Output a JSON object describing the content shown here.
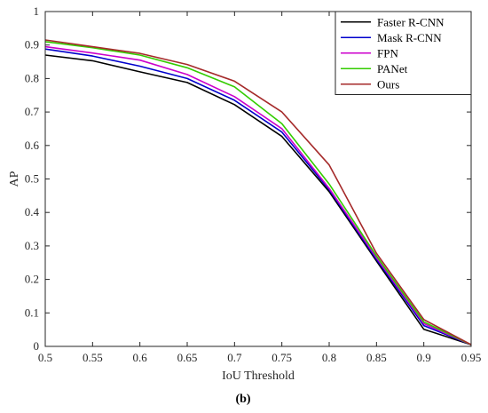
{
  "caption": "(b)",
  "chart_data": {
    "type": "line",
    "title": "",
    "xlabel": "IoU Threshold",
    "ylabel": "AP",
    "xlim": [
      0.5,
      0.95
    ],
    "ylim": [
      0,
      1
    ],
    "grid": false,
    "legend_position": "top-right",
    "x": [
      0.5,
      0.55,
      0.6,
      0.65,
      0.7,
      0.75,
      0.8,
      0.85,
      0.9,
      0.95
    ],
    "x_tick_labels": [
      "0.5",
      "0.55",
      "0.6",
      "0.65",
      "0.7",
      "0.75",
      "0.8",
      "0.85",
      "0.9",
      "0.95"
    ],
    "y_ticks": [
      0,
      0.1,
      0.2,
      0.3,
      0.4,
      0.5,
      0.6,
      0.7,
      0.8,
      0.9,
      1
    ],
    "y_tick_labels": [
      "0",
      "0.1",
      "0.2",
      "0.3",
      "0.4",
      "0.5",
      "0.6",
      "0.7",
      "0.8",
      "0.9",
      "1"
    ],
    "series": [
      {
        "name": "Faster R-CNN",
        "color": "#000000",
        "values": [
          0.87,
          0.853,
          0.82,
          0.788,
          0.722,
          0.627,
          0.462,
          0.255,
          0.051,
          0.005
        ]
      },
      {
        "name": "Mask R-CNN",
        "color": "#0000cc",
        "values": [
          0.888,
          0.867,
          0.837,
          0.8,
          0.735,
          0.64,
          0.468,
          0.26,
          0.062,
          0.005
        ]
      },
      {
        "name": "FPN",
        "color": "#cc00cc",
        "values": [
          0.895,
          0.876,
          0.855,
          0.812,
          0.746,
          0.65,
          0.472,
          0.265,
          0.068,
          0.005
        ]
      },
      {
        "name": "PANet",
        "color": "#33cc00",
        "values": [
          0.91,
          0.892,
          0.87,
          0.832,
          0.775,
          0.665,
          0.485,
          0.27,
          0.073,
          0.005
        ]
      },
      {
        "name": "Ours",
        "color": "#a52a2a",
        "values": [
          0.915,
          0.895,
          0.875,
          0.842,
          0.792,
          0.7,
          0.542,
          0.278,
          0.08,
          0.005
        ]
      }
    ]
  }
}
